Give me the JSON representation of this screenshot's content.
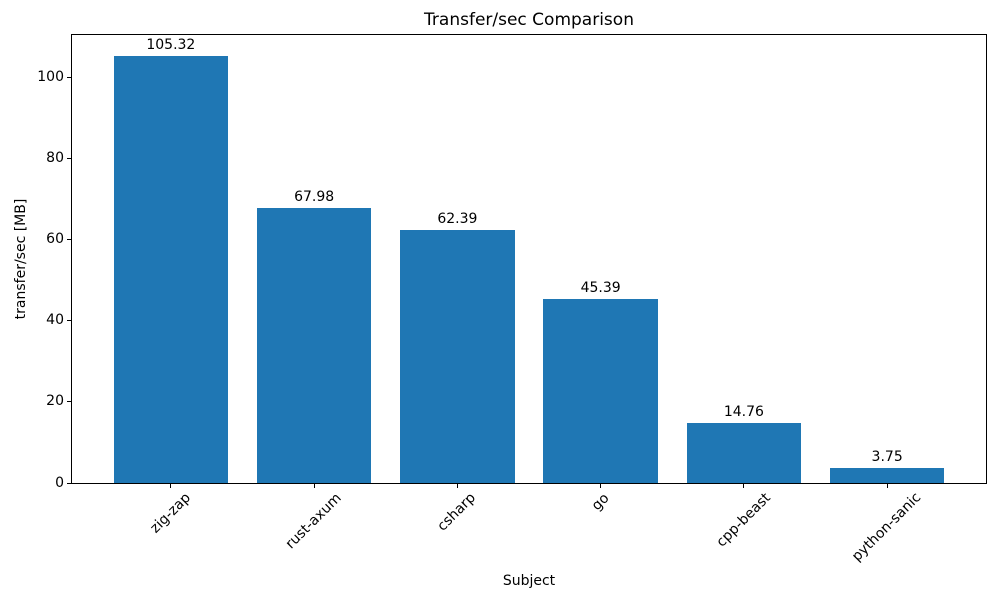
{
  "chart_data": {
    "type": "bar",
    "title": "Transfer/sec Comparison",
    "xlabel": "Subject",
    "ylabel": "transfer/sec [MB]",
    "categories": [
      "zig-zap",
      "rust-axum",
      "csharp",
      "go",
      "cpp-beast",
      "python-sanic"
    ],
    "values": [
      105.32,
      67.98,
      62.39,
      45.39,
      14.76,
      3.75
    ],
    "value_labels": [
      "105.32",
      "67.98",
      "62.39",
      "45.39",
      "14.76",
      "3.75"
    ],
    "yticks": [
      0,
      20,
      40,
      60,
      80,
      100
    ],
    "ylim": [
      0,
      110.59
    ],
    "bar_color": "#1f77b4",
    "text_color": "#000000",
    "bar_width_fraction": 0.8,
    "x_tick_rotation_deg": 45,
    "grid": false,
    "legend": null
  }
}
